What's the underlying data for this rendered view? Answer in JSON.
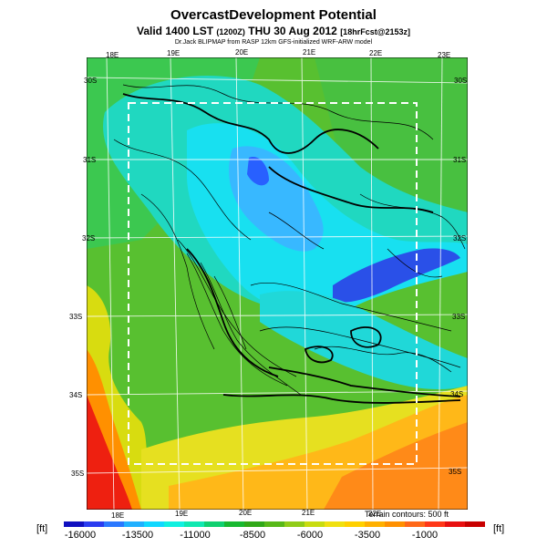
{
  "header": {
    "title": "OvercastDevelopment Potential",
    "subtitle_main": "Valid 1400 LST",
    "subtitle_utc": "(1200Z)",
    "subtitle_date": "THU 30 Aug 2012",
    "subtitle_fcst": "[18hrFcst@2153z]",
    "credit": "Dr.Jack BLIPMAP from RASP 12km GFS-initialized WRF-ARW model"
  },
  "map": {
    "lon_labels_top": [
      "18E",
      "19E",
      "20E",
      "21E",
      "22E",
      "23E"
    ],
    "lon_labels_bottom": [
      "18E",
      "19E",
      "20E",
      "21E",
      "22E"
    ],
    "lat_labels_left": [
      "30S",
      "31S",
      "32S",
      "33S",
      "34S",
      "35S"
    ],
    "lat_labels_right": [
      "30S",
      "31S",
      "32S",
      "33S",
      "34S",
      "35S"
    ],
    "terrain_note": "Terrain contours: 500 ft"
  },
  "colorbar": {
    "unit_left": "[ft]",
    "unit_right": "[ft]",
    "tick_labels": [
      "-16000",
      "-13500",
      "-11000",
      "-8500",
      "-6000",
      "-3500",
      "-1000"
    ],
    "colors": [
      "#1010c0",
      "#2a3cf0",
      "#2a78ff",
      "#20b0ff",
      "#10d8ff",
      "#10f0e0",
      "#10e8b0",
      "#10d070",
      "#18b830",
      "#30a818",
      "#58b818",
      "#90cc18",
      "#c8dc10",
      "#f0e010",
      "#ffd000",
      "#ffb000",
      "#ff9000",
      "#ff6818",
      "#ff3818",
      "#e81010",
      "#c80000"
    ]
  }
}
